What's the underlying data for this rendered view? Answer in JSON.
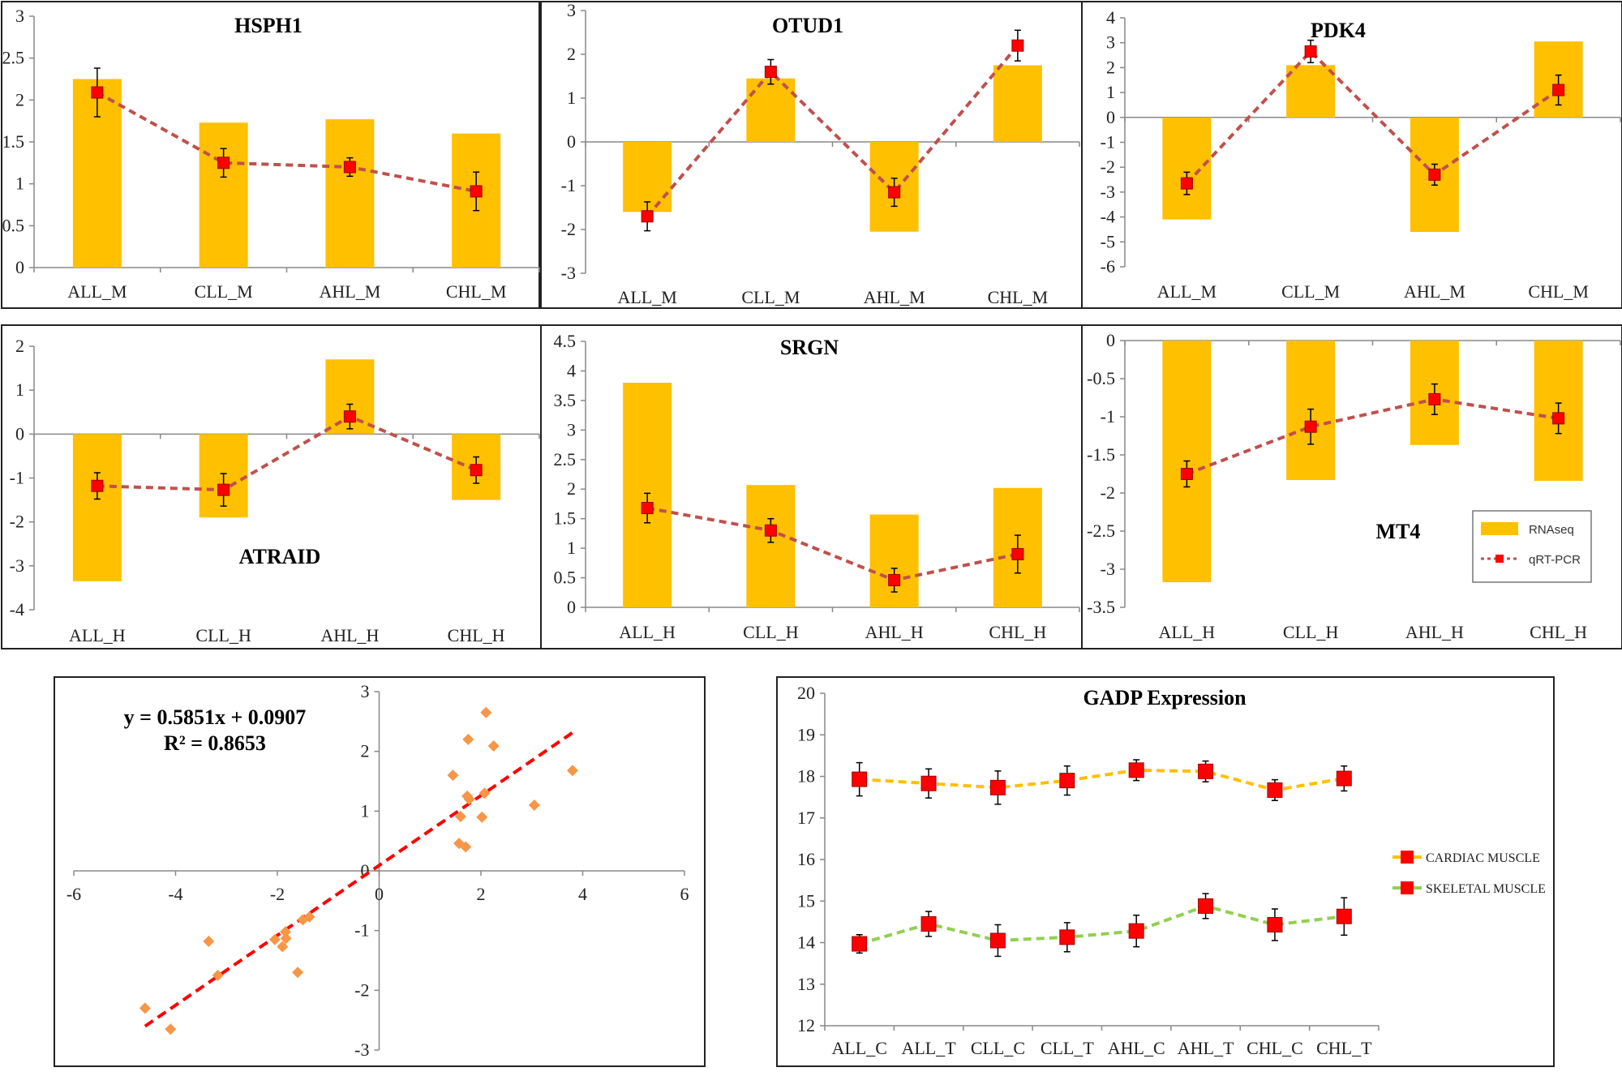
{
  "colors": {
    "bar": "#FFC000",
    "line": "#C0504D",
    "marker": "#FF0000",
    "scatter": "#F79646",
    "trend": "#FF0000",
    "cardiac": "#FFC000",
    "skeletal": "#92D050"
  },
  "legend": {
    "rnaseq": "RNAseq",
    "qrtpcr": "qRT-PCR"
  },
  "chart_data": [
    {
      "id": "HSPH1",
      "type": "bar+line",
      "title": "HSPH1",
      "categories": [
        "ALL_M",
        "CLL_M",
        "AHL_M",
        "CHL_M"
      ],
      "series": [
        {
          "name": "RNAseq",
          "values": [
            2.25,
            1.73,
            1.77,
            1.6
          ]
        },
        {
          "name": "qRT-PCR",
          "values": [
            2.09,
            1.25,
            1.2,
            0.91
          ],
          "errors": [
            0.29,
            0.17,
            0.11,
            0.23
          ]
        }
      ],
      "ylim": [
        0,
        3
      ],
      "yticks": [
        "0",
        "0.5",
        "1",
        "1.5",
        "2",
        "2.5",
        "3"
      ]
    },
    {
      "id": "OTUD1",
      "type": "bar+line",
      "title": "OTUD1",
      "categories": [
        "ALL_M",
        "CLL_M",
        "AHL_M",
        "CHL_M"
      ],
      "series": [
        {
          "name": "RNAseq",
          "values": [
            -1.6,
            1.45,
            -2.05,
            1.75
          ]
        },
        {
          "name": "qRT-PCR",
          "values": [
            -1.7,
            1.6,
            -1.15,
            2.2
          ],
          "errors": [
            0.33,
            0.28,
            0.32,
            0.35
          ]
        }
      ],
      "ylim": [
        -3,
        3
      ],
      "yticks": [
        "-3",
        "-2",
        "-1",
        "0",
        "1",
        "2",
        "3"
      ]
    },
    {
      "id": "PDK4",
      "type": "bar+line",
      "title": "PDK4",
      "categories": [
        "ALL_M",
        "CLL_M",
        "AHL_M",
        "CHL_M"
      ],
      "series": [
        {
          "name": "RNAseq",
          "values": [
            -4.1,
            2.1,
            -4.6,
            3.05
          ]
        },
        {
          "name": "qRT-PCR",
          "values": [
            -2.65,
            2.65,
            -2.3,
            1.1
          ],
          "errors": [
            0.45,
            0.45,
            0.42,
            0.6
          ]
        }
      ],
      "ylim": [
        -6,
        4
      ],
      "yticks": [
        "-6",
        "-5",
        "-4",
        "-3",
        "-2",
        "-1",
        "0",
        "1",
        "2",
        "3",
        "4"
      ]
    },
    {
      "id": "ATRAID",
      "type": "bar+line",
      "title": "ATRAID",
      "categories": [
        "ALL_H",
        "CLL_H",
        "AHL_H",
        "CHL_H"
      ],
      "series": [
        {
          "name": "RNAseq",
          "values": [
            -3.35,
            -1.9,
            1.7,
            -1.5
          ]
        },
        {
          "name": "qRT-PCR",
          "values": [
            -1.18,
            -1.27,
            0.4,
            -0.82
          ],
          "errors": [
            0.3,
            0.37,
            0.28,
            0.3
          ]
        }
      ],
      "ylim": [
        -4,
        2
      ],
      "yticks": [
        "-4",
        "-3",
        "-2",
        "-1",
        "0",
        "1",
        "2"
      ]
    },
    {
      "id": "SRGN",
      "type": "bar+line",
      "title": "SRGN",
      "categories": [
        "ALL_H",
        "CLL_H",
        "AHL_H",
        "CHL_H"
      ],
      "series": [
        {
          "name": "RNAseq",
          "values": [
            3.8,
            2.07,
            1.57,
            2.02
          ]
        },
        {
          "name": "qRT-PCR",
          "values": [
            1.68,
            1.3,
            0.46,
            0.9
          ],
          "errors": [
            0.25,
            0.2,
            0.2,
            0.32
          ]
        }
      ],
      "ylim": [
        0,
        4.5
      ],
      "yticks": [
        "0",
        "0.5",
        "1",
        "1.5",
        "2",
        "2.5",
        "3",
        "3.5",
        "4",
        "4.5"
      ]
    },
    {
      "id": "MT4",
      "type": "bar+line",
      "title": "MT4",
      "categories": [
        "ALL_H",
        "CLL_H",
        "AHL_H",
        "CHL_H"
      ],
      "series": [
        {
          "name": "RNAseq",
          "values": [
            -3.17,
            -1.83,
            -1.37,
            -1.84
          ]
        },
        {
          "name": "qRT-PCR",
          "values": [
            -1.75,
            -1.13,
            -0.77,
            -1.02
          ],
          "errors": [
            0.17,
            0.23,
            0.2,
            0.2
          ]
        }
      ],
      "ylim": [
        -3.5,
        0
      ],
      "yticks": [
        "-3.5",
        "-3",
        "-2.5",
        "-2",
        "-1.5",
        "-1",
        "-0.5",
        "0"
      ]
    },
    {
      "id": "regression",
      "type": "scatter",
      "equation": "y = 0.5851x + 0.0907",
      "r2": "R² = 0.8653",
      "xlim": [
        -6,
        6
      ],
      "ylim": [
        -3,
        3
      ],
      "xticks": [
        "-6",
        "-4",
        "-2",
        "0",
        "2",
        "4",
        "6"
      ],
      "yticks": [
        "-3",
        "-2",
        "-1",
        "0",
        "1",
        "2",
        "3"
      ],
      "trend": {
        "slope": 0.5851,
        "intercept": 0.0907,
        "x_range": [
          -4.6,
          3.8
        ]
      },
      "points": [
        [
          2.25,
          2.09
        ],
        [
          1.73,
          1.25
        ],
        [
          1.77,
          1.2
        ],
        [
          1.6,
          0.91
        ],
        [
          -1.6,
          -1.7
        ],
        [
          1.45,
          1.6
        ],
        [
          -2.05,
          -1.15
        ],
        [
          1.75,
          2.2
        ],
        [
          -4.1,
          -2.65
        ],
        [
          2.1,
          2.65
        ],
        [
          -4.6,
          -2.3
        ],
        [
          3.05,
          1.1
        ],
        [
          -3.35,
          -1.18
        ],
        [
          -1.9,
          -1.27
        ],
        [
          1.7,
          0.4
        ],
        [
          -1.5,
          -0.82
        ],
        [
          3.8,
          1.68
        ],
        [
          2.07,
          1.3
        ],
        [
          1.57,
          0.46
        ],
        [
          2.02,
          0.9
        ],
        [
          -3.17,
          -1.75
        ],
        [
          -1.83,
          -1.13
        ],
        [
          -1.37,
          -0.77
        ],
        [
          -1.84,
          -1.02
        ]
      ]
    },
    {
      "id": "GADP",
      "type": "line",
      "title": "GADP Expression",
      "categories": [
        "ALL_C",
        "ALL_T",
        "CLL_C",
        "CLL_T",
        "AHL_C",
        "AHL_T",
        "CHL_C",
        "CHL_T"
      ],
      "series": [
        {
          "name": "CARDIAC MUSCLE",
          "values": [
            17.93,
            17.83,
            17.73,
            17.9,
            18.15,
            18.12,
            17.67,
            17.95
          ],
          "errors": [
            0.4,
            0.35,
            0.4,
            0.35,
            0.25,
            0.25,
            0.25,
            0.3
          ]
        },
        {
          "name": "SKELETAL MUSCLE",
          "values": [
            13.97,
            14.45,
            14.05,
            14.13,
            14.28,
            14.88,
            14.43,
            14.63
          ],
          "errors": [
            0.22,
            0.3,
            0.38,
            0.35,
            0.38,
            0.3,
            0.38,
            0.45
          ]
        }
      ],
      "ylim": [
        12,
        20
      ],
      "yticks": [
        "12",
        "13",
        "14",
        "15",
        "16",
        "17",
        "18",
        "19",
        "20"
      ]
    }
  ]
}
